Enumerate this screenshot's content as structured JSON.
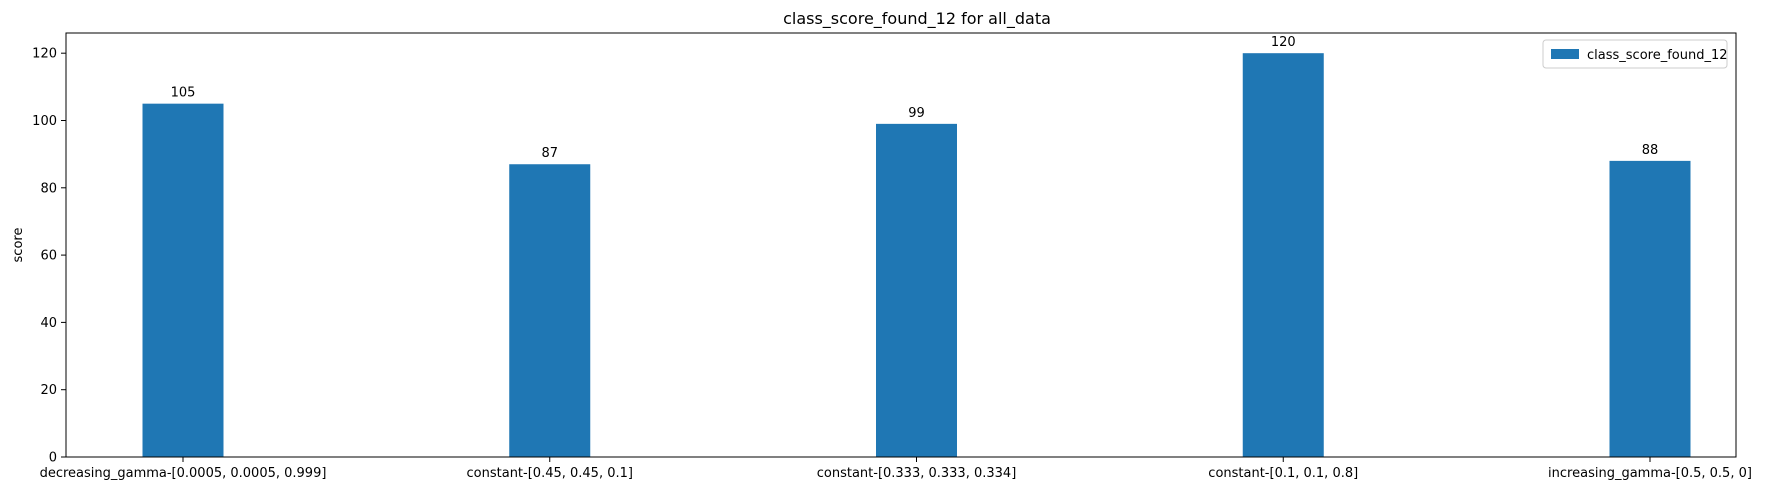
{
  "chart_data": {
    "type": "bar",
    "title": "class_score_found_12 for all_data",
    "xlabel": "",
    "ylabel": "score",
    "ylim": [
      0,
      126
    ],
    "yticks": [
      0,
      20,
      40,
      60,
      80,
      100,
      120
    ],
    "categories": [
      "decreasing_gamma-[0.0005, 0.0005, 0.999]",
      "constant-[0.45, 0.45, 0.1]",
      "constant-[0.333, 0.333, 0.334]",
      "constant-[0.1, 0.1, 0.8]",
      "increasing_gamma-[0.5, 0.5, 0]"
    ],
    "series": [
      {
        "name": "class_score_found_12",
        "color": "#1f77b4",
        "values": [
          105,
          87,
          99,
          120,
          88
        ]
      }
    ],
    "grid": false,
    "legend_position": "top-right"
  }
}
